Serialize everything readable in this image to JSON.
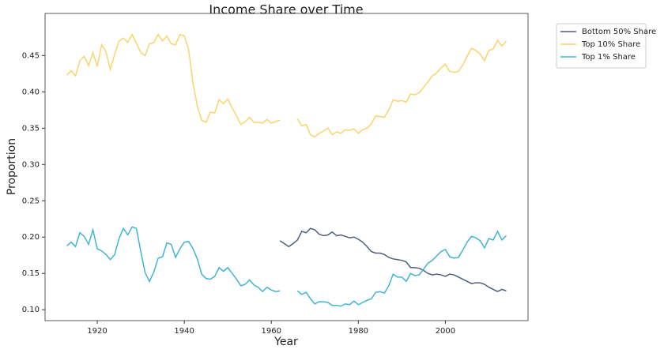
{
  "chart_data": {
    "type": "line",
    "title": "Income Share over Time",
    "x_label": "Year",
    "y_label": "Proportion",
    "x": [
      1913,
      1914,
      1915,
      1916,
      1917,
      1918,
      1919,
      1920,
      1921,
      1922,
      1923,
      1924,
      1925,
      1926,
      1927,
      1928,
      1929,
      1930,
      1931,
      1932,
      1933,
      1934,
      1935,
      1936,
      1937,
      1938,
      1939,
      1940,
      1941,
      1942,
      1943,
      1944,
      1945,
      1946,
      1947,
      1948,
      1949,
      1950,
      1951,
      1952,
      1953,
      1954,
      1955,
      1956,
      1957,
      1958,
      1959,
      1960,
      1961,
      1962,
      1963,
      1964,
      1965,
      1966,
      1967,
      1968,
      1969,
      1970,
      1971,
      1972,
      1973,
      1974,
      1975,
      1976,
      1977,
      1978,
      1979,
      1980,
      1981,
      1982,
      1983,
      1984,
      1985,
      1986,
      1987,
      1988,
      1989,
      1990,
      1991,
      1992,
      1993,
      1994,
      1995,
      1996,
      1997,
      1998,
      1999,
      2000,
      2001,
      2002,
      2003,
      2004,
      2005,
      2006,
      2007,
      2008,
      2009,
      2010,
      2011,
      2012,
      2013,
      2014
    ],
    "series": [
      {
        "name": "Bottom 50% Share",
        "color": "#4d5f7c",
        "values": [
          null,
          null,
          null,
          null,
          null,
          null,
          null,
          null,
          null,
          null,
          null,
          null,
          null,
          null,
          null,
          null,
          null,
          null,
          null,
          null,
          null,
          null,
          null,
          null,
          null,
          null,
          null,
          null,
          null,
          null,
          null,
          null,
          null,
          null,
          null,
          null,
          null,
          null,
          null,
          null,
          null,
          null,
          null,
          null,
          null,
          null,
          null,
          null,
          null,
          0.195,
          0.191,
          0.187,
          0.191,
          0.196,
          0.208,
          0.206,
          0.212,
          0.21,
          0.204,
          0.202,
          0.203,
          0.207,
          0.202,
          0.203,
          0.201,
          0.199,
          0.2,
          0.197,
          0.193,
          0.187,
          0.18,
          0.178,
          0.178,
          0.176,
          0.172,
          0.17,
          0.169,
          0.168,
          0.166,
          0.158,
          0.158,
          0.157,
          0.154,
          0.15,
          0.148,
          0.149,
          0.148,
          0.146,
          0.149,
          0.148,
          0.145,
          0.142,
          0.139,
          0.136,
          0.137,
          0.137,
          0.135,
          0.131,
          0.128,
          0.125,
          0.128,
          0.126
        ]
      },
      {
        "name": "Top 10% Share",
        "color": "#fad46c",
        "values": [
          0.423,
          0.429,
          0.422,
          0.443,
          0.449,
          0.436,
          0.454,
          0.435,
          0.465,
          0.455,
          0.431,
          0.452,
          0.47,
          0.474,
          0.468,
          0.479,
          0.467,
          0.454,
          0.45,
          0.466,
          0.468,
          0.479,
          0.47,
          0.477,
          0.466,
          0.465,
          0.479,
          0.477,
          0.458,
          0.412,
          0.38,
          0.361,
          0.358,
          0.372,
          0.371,
          0.389,
          0.384,
          0.39,
          0.378,
          0.367,
          0.355,
          0.359,
          0.365,
          0.358,
          0.358,
          0.357,
          0.362,
          0.357,
          0.359,
          0.361,
          null,
          null,
          null,
          0.363,
          0.353,
          0.355,
          0.341,
          0.338,
          0.343,
          0.346,
          0.35,
          0.341,
          0.345,
          0.343,
          0.348,
          0.347,
          0.349,
          0.343,
          0.348,
          0.35,
          0.356,
          0.367,
          0.366,
          0.365,
          0.375,
          0.389,
          0.387,
          0.388,
          0.386,
          0.397,
          0.396,
          0.399,
          0.406,
          0.414,
          0.422,
          0.426,
          0.433,
          0.438,
          0.428,
          0.427,
          0.428,
          0.437,
          0.449,
          0.46,
          0.457,
          0.452,
          0.443,
          0.457,
          0.459,
          0.471,
          0.463,
          0.47
        ]
      },
      {
        "name": "Top 1% Share",
        "color": "#41b3d3",
        "values": [
          0.188,
          0.193,
          0.187,
          0.206,
          0.201,
          0.19,
          0.21,
          0.184,
          0.181,
          0.176,
          0.169,
          0.176,
          0.198,
          0.212,
          0.203,
          0.214,
          0.212,
          0.18,
          0.151,
          0.139,
          0.152,
          0.171,
          0.173,
          0.192,
          0.19,
          0.172,
          0.184,
          0.193,
          0.194,
          0.184,
          0.17,
          0.149,
          0.143,
          0.142,
          0.146,
          0.158,
          0.153,
          0.158,
          0.15,
          0.142,
          0.133,
          0.135,
          0.141,
          0.134,
          0.131,
          0.125,
          0.131,
          0.127,
          0.125,
          0.126,
          null,
          null,
          null,
          0.126,
          0.121,
          0.124,
          0.115,
          0.108,
          0.111,
          0.111,
          0.11,
          0.106,
          0.106,
          0.105,
          0.108,
          0.107,
          0.112,
          0.107,
          0.11,
          0.113,
          0.115,
          0.124,
          0.125,
          0.123,
          0.133,
          0.149,
          0.145,
          0.145,
          0.139,
          0.15,
          0.147,
          0.148,
          0.156,
          0.164,
          0.168,
          0.174,
          0.18,
          0.183,
          0.173,
          0.171,
          0.172,
          0.182,
          0.193,
          0.201,
          0.199,
          0.195,
          0.185,
          0.198,
          0.196,
          0.208,
          0.196,
          0.202
        ]
      }
    ],
    "xlim": [
      1908,
      2019
    ],
    "xticks": [
      1920,
      1940,
      1960,
      1980,
      2000
    ],
    "ylim": [
      0.085,
      0.508
    ],
    "yticks": [
      {
        "value": 0.1,
        "label": "0.10"
      },
      0.15,
      {
        "value": 0.2,
        "label": "0.20"
      },
      0.25,
      {
        "value": 0.3,
        "label": "0.30"
      },
      0.35,
      {
        "value": 0.4,
        "label": "0.40"
      },
      0.45
    ],
    "grid": false,
    "legend": "outside upper right"
  }
}
